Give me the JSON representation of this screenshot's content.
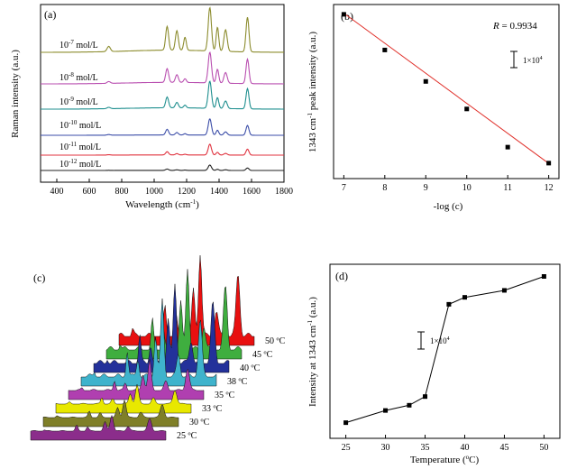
{
  "chart_data": [
    {
      "panel": "(a)",
      "type": "line",
      "xlabel": "Wavelength (cm",
      "xlabel_sup": "-1",
      "ylabel": "Raman intensity (a.u.)",
      "xlim": [
        300,
        1800
      ],
      "x_ticks": [
        400,
        600,
        800,
        1000,
        1200,
        1400,
        1600,
        1800
      ],
      "y_ticks_shown": false,
      "peaks_cm": [
        720,
        1080,
        1140,
        1190,
        1343,
        1390,
        1440,
        1575
      ],
      "series": [
        {
          "name": "10",
          "exp": "-7",
          "unit": " mol/L",
          "color": "#8c8c2e",
          "peak_heights": [
            0.12,
            0.55,
            0.45,
            0.3,
            1.0,
            0.55,
            0.5,
            0.8
          ]
        },
        {
          "name": "10",
          "exp": "-8",
          "unit": " mol/L",
          "color": "#b94fb0",
          "peak_heights": [
            0.06,
            0.45,
            0.25,
            0.12,
            1.0,
            0.45,
            0.35,
            0.8
          ]
        },
        {
          "name": "10",
          "exp": "-9",
          "unit": " mol/L",
          "color": "#1f8f8f",
          "peak_heights": [
            0.05,
            0.4,
            0.2,
            0.1,
            1.0,
            0.4,
            0.28,
            0.75
          ]
        },
        {
          "name": "10",
          "exp": "-10",
          "unit": " mol/L",
          "color": "#3b4da8",
          "peak_heights": [
            0.04,
            0.35,
            0.15,
            0.08,
            1.0,
            0.3,
            0.2,
            0.6
          ]
        },
        {
          "name": "10",
          "exp": "-11",
          "unit": " mol/L",
          "color": "#e0333f",
          "peak_heights": [
            0.03,
            0.3,
            0.12,
            0.06,
            1.0,
            0.25,
            0.15,
            0.55
          ]
        },
        {
          "name": "10",
          "exp": "-12",
          "unit": " mol/L",
          "color": "#222222",
          "peak_heights": [
            0.02,
            0.25,
            0.1,
            0.05,
            1.0,
            0.2,
            0.12,
            0.45
          ]
        }
      ]
    },
    {
      "panel": "(b)",
      "type": "scatter",
      "xlabel": "-log (c)",
      "ylabel": "1343 cm",
      "ylabel_sup": "-1",
      "ylabel_tail": " peak intensity (a.u.)",
      "xlim": [
        6.75,
        12.25
      ],
      "ylim": [
        0,
        6.2
      ],
      "x_ticks": [
        7,
        8,
        9,
        10,
        11,
        12
      ],
      "x": [
        7,
        8,
        9,
        10,
        11,
        12
      ],
      "y": [
        5.85,
        4.58,
        3.46,
        2.48,
        1.12,
        0.55
      ],
      "fit": {
        "slope": -1.07,
        "intercept": 13.38
      },
      "r_label": "R",
      "r_value": " = 0.9934",
      "scalebar_label": "1×10",
      "scalebar_sup": "4"
    },
    {
      "panel": "(c)",
      "type": "area",
      "temperatures": [
        "25 ºC",
        "30 ºC",
        "33 ºC",
        "35 ºC",
        "38 ºC",
        "40 ºC",
        "45 ºC",
        "50 ºC"
      ],
      "colors": [
        "#8b2d8b",
        "#7f7f28",
        "#e8e800",
        "#b03fb0",
        "#3fb3cc",
        "#23319a",
        "#3fae3f",
        "#e81010"
      ],
      "relative_peak": [
        0.12,
        0.14,
        0.16,
        0.3,
        0.9,
        0.95,
        1.0,
        1.0
      ]
    },
    {
      "panel": "(d)",
      "type": "line",
      "xlabel": "Temperature (",
      "xlabel_sup": "o",
      "xlabel_tail": "C)",
      "ylabel": "Intensity at 1343 cm",
      "ylabel_sup": "-1",
      "ylabel_tail": " (a.u.)",
      "xlim": [
        23,
        52
      ],
      "ylim": [
        0,
        10
      ],
      "x_ticks": [
        25,
        30,
        35,
        40,
        45,
        50
      ],
      "x": [
        25,
        30,
        33,
        35,
        38,
        40,
        45,
        50
      ],
      "y": [
        0.9,
        1.6,
        1.9,
        2.4,
        7.7,
        8.1,
        8.5,
        9.3
      ],
      "scalebar_label": "1×10",
      "scalebar_sup": "4"
    }
  ]
}
